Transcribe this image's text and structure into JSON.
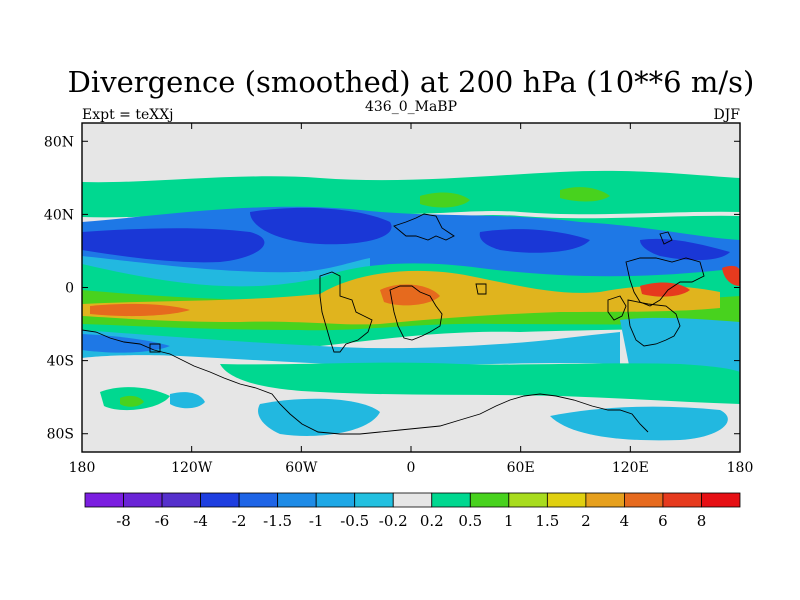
{
  "chart_data": {
    "type": "heatmap",
    "title": "Divergence (smoothed) at 200 hPa (10**6 m/s)",
    "subtitle_left": "Expt = teXXj",
    "subtitle_center": "436_0_MaBP",
    "subtitle_right": "DJF",
    "x_ticks": [
      "180",
      "120W",
      "60W",
      "0",
      "60E",
      "120E",
      "180"
    ],
    "x_tick_values": [
      -180,
      -120,
      -60,
      0,
      60,
      120,
      180
    ],
    "y_ticks": [
      "80N",
      "40N",
      "0",
      "40S",
      "80S"
    ],
    "y_tick_values": [
      80,
      40,
      0,
      -40,
      -80
    ],
    "xlim": [
      -180,
      180
    ],
    "ylim": [
      -90,
      90
    ],
    "colorbar_labels": [
      "-8",
      "-6",
      "-4",
      "-2",
      "-1.5",
      "-1",
      "-0.5",
      "-0.2",
      "0.2",
      "0.5",
      "1",
      "1.5",
      "2",
      "4",
      "6",
      "8"
    ],
    "colorbar_colors": [
      "#7b1ee0",
      "#6a24d6",
      "#5530cc",
      "#1e3ee0",
      "#1e64e6",
      "#1e8be6",
      "#1ea8e6",
      "#22c0e0",
      "#e6e6e6",
      "#00d890",
      "#48d21e",
      "#a8dc1e",
      "#e0d010",
      "#e6a01e",
      "#e66a1e",
      "#e63a1e",
      "#e60f14"
    ],
    "field_colors": {
      "strong_negative": "#1a37d6",
      "negative": "#1e78e6",
      "weak_negative": "#22b8e0",
      "neutral": "#e6e6e6",
      "weak_positive": "#00d890",
      "positive": "#48d21e",
      "moderate_positive": "#e0b41e",
      "strong_positive": "#e66a1e",
      "maximum": "#e63a1e"
    }
  }
}
